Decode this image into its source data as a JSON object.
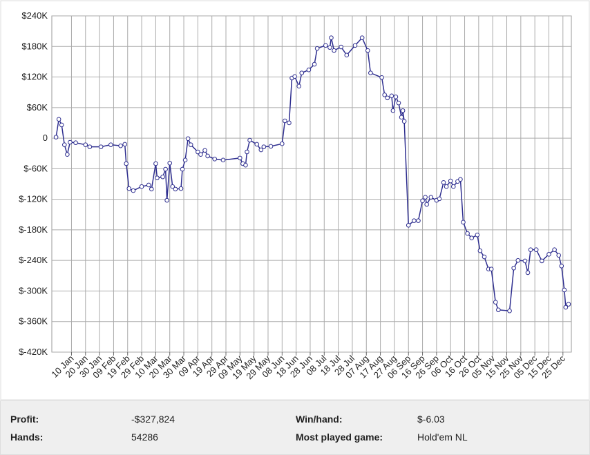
{
  "chart_data": {
    "type": "line",
    "ylim": [
      -420000,
      240000
    ],
    "yticks": [
      {
        "value": 240000,
        "label": "$240K"
      },
      {
        "value": 180000,
        "label": "$180K"
      },
      {
        "value": 120000,
        "label": "$120K"
      },
      {
        "value": 60000,
        "label": "$60K"
      },
      0,
      {
        "value": -60000,
        "label": "$-60K"
      },
      {
        "value": -120000,
        "label": "$-120K"
      },
      {
        "value": -180000,
        "label": "$-180K"
      },
      {
        "value": -240000,
        "label": "$-240K"
      },
      {
        "value": -300000,
        "label": "$-300K"
      },
      {
        "value": -360000,
        "label": "$-360K"
      },
      {
        "value": -420000,
        "label": "$-420K"
      }
    ],
    "xlim": [
      -4,
      366
    ],
    "xticks": [
      {
        "value": 10,
        "label": "10 Jan"
      },
      {
        "value": 20,
        "label": "20 Jan"
      },
      {
        "value": 30,
        "label": "30 Jan"
      },
      {
        "value": 40,
        "label": "09 Feb"
      },
      {
        "value": 50,
        "label": "19 Feb"
      },
      {
        "value": 60,
        "label": "29 Feb"
      },
      {
        "value": 70,
        "label": "10 Mar"
      },
      {
        "value": 80,
        "label": "20 Mar"
      },
      {
        "value": 90,
        "label": "30 Mar"
      },
      {
        "value": 100,
        "label": "09 Apr"
      },
      {
        "value": 110,
        "label": "19 Apr"
      },
      {
        "value": 120,
        "label": "29 Apr"
      },
      {
        "value": 130,
        "label": "09 May"
      },
      {
        "value": 140,
        "label": "19 May"
      },
      {
        "value": 150,
        "label": "29 May"
      },
      {
        "value": 160,
        "label": "08 Jun"
      },
      {
        "value": 170,
        "label": "18 Jun"
      },
      {
        "value": 180,
        "label": "28 Jun"
      },
      {
        "value": 190,
        "label": "08 Jul"
      },
      {
        "value": 200,
        "label": "18 Jul"
      },
      {
        "value": 210,
        "label": "28 Jul"
      },
      {
        "value": 220,
        "label": "07 Aug"
      },
      {
        "value": 230,
        "label": "17 Aug"
      },
      {
        "value": 240,
        "label": "27 Aug"
      },
      {
        "value": 250,
        "label": "06 Sep"
      },
      {
        "value": 260,
        "label": "16 Sep"
      },
      {
        "value": 270,
        "label": "26 Sep"
      },
      {
        "value": 280,
        "label": "06 Oct"
      },
      {
        "value": 290,
        "label": "16 Oct"
      },
      {
        "value": 300,
        "label": "26 Oct"
      },
      {
        "value": 310,
        "label": "05 Nov"
      },
      {
        "value": 320,
        "label": "15 Nov"
      },
      {
        "value": 330,
        "label": "25 Nov"
      },
      {
        "value": 340,
        "label": "05 Dec"
      },
      {
        "value": 350,
        "label": "15 Dec"
      },
      {
        "value": 360,
        "label": "25 Dec"
      }
    ],
    "grid": true,
    "series": [
      {
        "color": "#2e2e8f",
        "x": [
          -1,
          1,
          3,
          5,
          7,
          9,
          13,
          20,
          23,
          31,
          38,
          45,
          48,
          49,
          51,
          54,
          60,
          65,
          67,
          70,
          71,
          75,
          77,
          78,
          80,
          82,
          84,
          88,
          89,
          91,
          93,
          95,
          100,
          102,
          105,
          107,
          112,
          118,
          130,
          132,
          134,
          135,
          137,
          142,
          145,
          147,
          152,
          160,
          162,
          165,
          167,
          169,
          172,
          174,
          179,
          183,
          185,
          191,
          194,
          195,
          197,
          202,
          206,
          212,
          217,
          221,
          223,
          231,
          233,
          235,
          238,
          239,
          241,
          243,
          245,
          246,
          247,
          250,
          254,
          257,
          260,
          262,
          263,
          266,
          270,
          272,
          275,
          277,
          280,
          282,
          285,
          287,
          289,
          292,
          295,
          299,
          301,
          304,
          307,
          309,
          312,
          314,
          322,
          325,
          328,
          333,
          335,
          337,
          341,
          345,
          350,
          354,
          357,
          359,
          361,
          362,
          364
        ],
        "values": [
          2000,
          37000,
          26000,
          -13000,
          -32000,
          -8000,
          -9000,
          -13000,
          -17000,
          -17000,
          -13000,
          -15000,
          -12000,
          -50000,
          -99000,
          -103000,
          -95000,
          -92000,
          -100000,
          -50000,
          -78000,
          -76000,
          -61000,
          -122000,
          -49000,
          -95000,
          -100000,
          -99000,
          -61000,
          -43000,
          -1000,
          -13000,
          -27000,
          -32000,
          -24000,
          -35000,
          -41000,
          -43000,
          -39000,
          -50000,
          -53000,
          -27000,
          -4000,
          -12000,
          -23000,
          -17000,
          -16000,
          -11000,
          34000,
          30000,
          118000,
          121000,
          102000,
          128000,
          134000,
          145000,
          176000,
          182000,
          178000,
          197000,
          172000,
          179000,
          163000,
          182000,
          197000,
          172000,
          128000,
          119000,
          85000,
          79000,
          83000,
          54000,
          81000,
          69000,
          41000,
          54000,
          33000,
          -171000,
          -162000,
          -162000,
          -123000,
          -116000,
          -130000,
          -116000,
          -122000,
          -119000,
          -87000,
          -95000,
          -84000,
          -95000,
          -85000,
          -81000,
          -165000,
          -187000,
          -196000,
          -190000,
          -221000,
          -233000,
          -257000,
          -257000,
          -322000,
          -337000,
          -339000,
          -255000,
          -240000,
          -241000,
          -264000,
          -219000,
          -219000,
          -241000,
          -228000,
          -219000,
          -230000,
          -251000,
          -298000,
          -332000,
          -326000
        ]
      }
    ]
  },
  "stats": [
    {
      "label": "Profit:",
      "value": "-$327,824"
    },
    {
      "label": "Win/hand:",
      "value": "$-6.03"
    },
    {
      "label": "Hands:",
      "value": "54286"
    },
    {
      "label": "Most played game:",
      "value": "Hold'em NL"
    }
  ]
}
